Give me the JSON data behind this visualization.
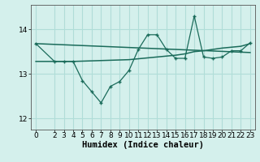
{
  "xlabel": "Humidex (Indice chaleur)",
  "bg_color": "#d4f0ec",
  "grid_color": "#b0ddd8",
  "line_color": "#1a6b5a",
  "xlim": [
    -0.5,
    23.5
  ],
  "ylim": [
    11.75,
    14.55
  ],
  "yticks": [
    12,
    13,
    14
  ],
  "xticks": [
    0,
    2,
    3,
    4,
    5,
    6,
    7,
    8,
    9,
    10,
    11,
    12,
    13,
    14,
    15,
    16,
    17,
    18,
    19,
    20,
    21,
    22,
    23
  ],
  "series1_x": [
    0,
    2,
    3,
    4,
    5,
    6,
    7,
    8,
    9,
    10,
    11,
    12,
    13,
    14,
    15,
    16,
    17,
    18,
    19,
    20,
    21,
    22,
    23
  ],
  "series1_y": [
    13.68,
    13.28,
    13.28,
    13.28,
    12.85,
    12.6,
    12.35,
    12.72,
    12.83,
    13.08,
    13.55,
    13.88,
    13.88,
    13.55,
    13.35,
    13.35,
    14.3,
    13.38,
    13.35,
    13.38,
    13.52,
    13.52,
    13.7
  ],
  "series2_x": [
    0,
    23
  ],
  "series2_y": [
    13.68,
    13.48
  ],
  "series3_x": [
    0,
    2,
    3,
    4,
    10,
    14,
    15,
    16,
    17,
    18,
    20,
    21,
    22,
    23
  ],
  "series3_y": [
    13.28,
    13.28,
    13.28,
    13.28,
    13.32,
    13.4,
    13.42,
    13.45,
    13.5,
    13.52,
    13.58,
    13.6,
    13.62,
    13.68
  ],
  "tick_fontsize": 6.5,
  "label_fontsize": 7.5
}
